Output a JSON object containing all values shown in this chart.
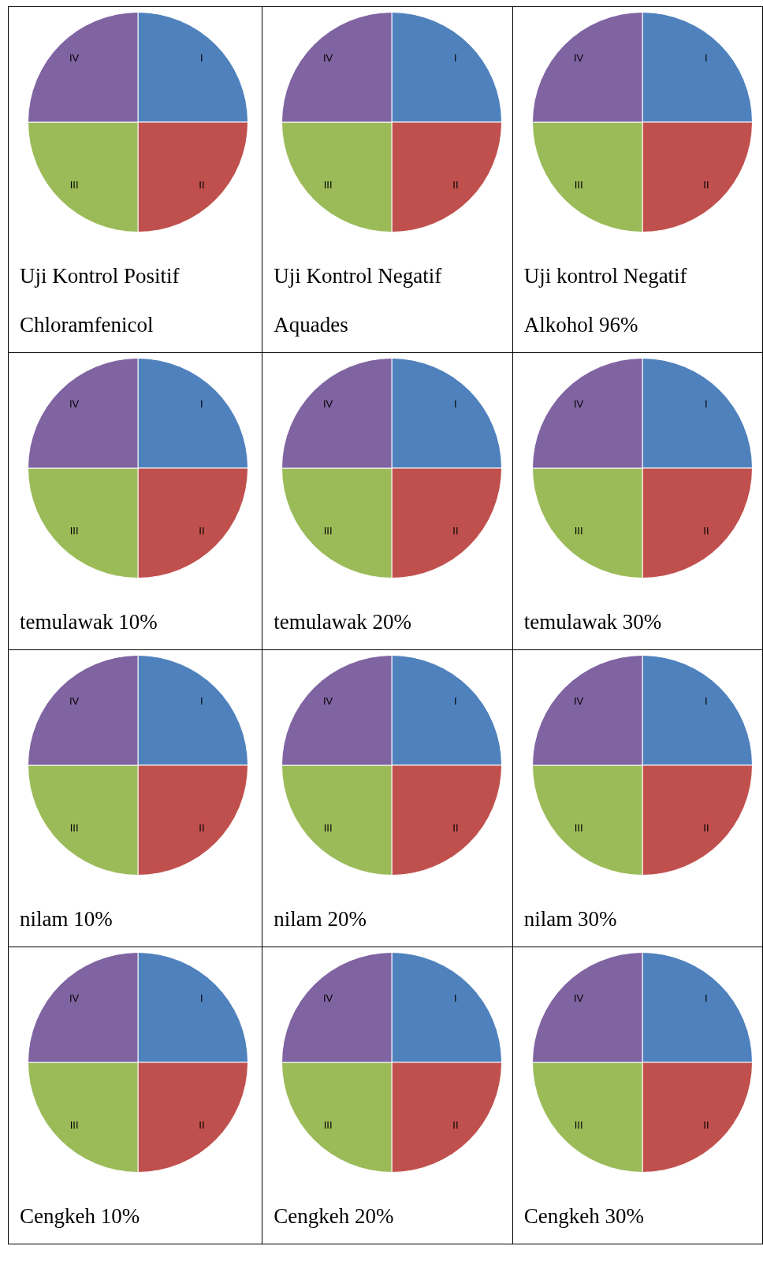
{
  "chart_data": [
    {
      "type": "pie",
      "title": "Uji Kontrol Positif",
      "subtitle": "Chloramfenicol",
      "categories": [
        "I",
        "II",
        "III",
        "IV"
      ],
      "values": [
        25,
        25,
        25,
        25
      ],
      "colors": [
        "#4f81bd",
        "#c0504d",
        "#9bbb59",
        "#8064a2"
      ]
    },
    {
      "type": "pie",
      "title": "Uji Kontrol Negatif",
      "subtitle": "Aquades",
      "categories": [
        "I",
        "II",
        "III",
        "IV"
      ],
      "values": [
        25,
        25,
        25,
        25
      ],
      "colors": [
        "#4f81bd",
        "#c0504d",
        "#9bbb59",
        "#8064a2"
      ]
    },
    {
      "type": "pie",
      "title": "Uji kontrol Negatif",
      "subtitle": "Alkohol 96%",
      "categories": [
        "I",
        "II",
        "III",
        "IV"
      ],
      "values": [
        25,
        25,
        25,
        25
      ],
      "colors": [
        "#4f81bd",
        "#c0504d",
        "#9bbb59",
        "#8064a2"
      ]
    },
    {
      "type": "pie",
      "title": "temulawak 10%",
      "categories": [
        "I",
        "II",
        "III",
        "IV"
      ],
      "values": [
        25,
        25,
        25,
        25
      ],
      "colors": [
        "#4f81bd",
        "#c0504d",
        "#9bbb59",
        "#8064a2"
      ]
    },
    {
      "type": "pie",
      "title": "temulawak 20%",
      "categories": [
        "I",
        "II",
        "III",
        "IV"
      ],
      "values": [
        25,
        25,
        25,
        25
      ],
      "colors": [
        "#4f81bd",
        "#c0504d",
        "#9bbb59",
        "#8064a2"
      ]
    },
    {
      "type": "pie",
      "title": "temulawak 30%",
      "categories": [
        "I",
        "II",
        "III",
        "IV"
      ],
      "values": [
        25,
        25,
        25,
        25
      ],
      "colors": [
        "#4f81bd",
        "#c0504d",
        "#9bbb59",
        "#8064a2"
      ]
    },
    {
      "type": "pie",
      "title": "nilam 10%",
      "categories": [
        "I",
        "II",
        "III",
        "IV"
      ],
      "values": [
        25,
        25,
        25,
        25
      ],
      "colors": [
        "#4f81bd",
        "#c0504d",
        "#9bbb59",
        "#8064a2"
      ]
    },
    {
      "type": "pie",
      "title": "nilam 20%",
      "categories": [
        "I",
        "II",
        "III",
        "IV"
      ],
      "values": [
        25,
        25,
        25,
        25
      ],
      "colors": [
        "#4f81bd",
        "#c0504d",
        "#9bbb59",
        "#8064a2"
      ]
    },
    {
      "type": "pie",
      "title": "nilam 30%",
      "categories": [
        "I",
        "II",
        "III",
        "IV"
      ],
      "values": [
        25,
        25,
        25,
        25
      ],
      "colors": [
        "#4f81bd",
        "#c0504d",
        "#9bbb59",
        "#8064a2"
      ]
    },
    {
      "type": "pie",
      "title": "Cengkeh 10%",
      "categories": [
        "I",
        "II",
        "III",
        "IV"
      ],
      "values": [
        25,
        25,
        25,
        25
      ],
      "colors": [
        "#4f81bd",
        "#c0504d",
        "#9bbb59",
        "#8064a2"
      ]
    },
    {
      "type": "pie",
      "title": "Cengkeh 20%",
      "categories": [
        "I",
        "II",
        "III",
        "IV"
      ],
      "values": [
        25,
        25,
        25,
        25
      ],
      "colors": [
        "#4f81bd",
        "#c0504d",
        "#9bbb59",
        "#8064a2"
      ]
    },
    {
      "type": "pie",
      "title": "Cengkeh 30%",
      "categories": [
        "I",
        "II",
        "III",
        "IV"
      ],
      "values": [
        25,
        25,
        25,
        25
      ],
      "colors": [
        "#4f81bd",
        "#c0504d",
        "#9bbb59",
        "#8064a2"
      ]
    }
  ]
}
